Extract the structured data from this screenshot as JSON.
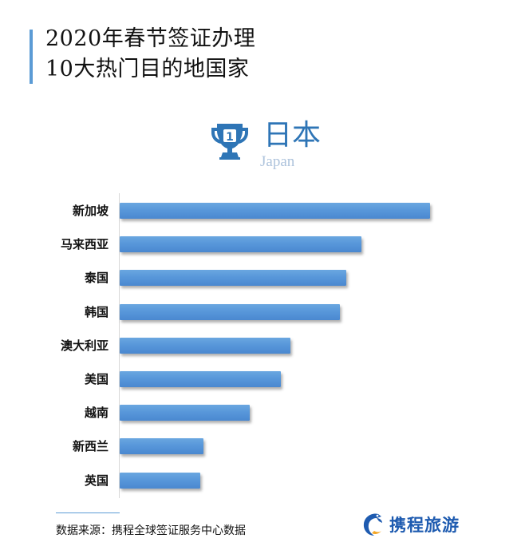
{
  "header": {
    "title_line1": "2020年春节签证办理",
    "title_line2": "10大热门目的地国家",
    "accent_color": "#5b9bd5"
  },
  "highlight": {
    "rank_icon": "trophy-rank-1-icon",
    "rank": "1",
    "country_cn": "日本",
    "country_en": "Japan",
    "color": "#2e75b6"
  },
  "chart_data": {
    "type": "bar",
    "orientation": "horizontal",
    "title": "2020年春节签证办理10大热门目的地国家",
    "subtitle": "1 日本 Japan",
    "categories": [
      "新加坡",
      "马来西亚",
      "泰国",
      "韩国",
      "澳大利亚",
      "美国",
      "越南",
      "新西兰",
      "英国"
    ],
    "values": [
      100,
      78,
      73,
      71,
      55,
      52,
      42,
      27,
      26
    ],
    "value_unit": "relative bar length (% of top, estimated; no axis shown)",
    "xlabel": "",
    "ylabel": "",
    "grid": false,
    "legend": null,
    "bar_color": "#5b9bd5"
  },
  "footer": {
    "source": "数据来源：携程全球签证服务中心数据",
    "logo_icon": "ctrip-dolphin-logo-icon",
    "logo_text": "携程旅游"
  }
}
